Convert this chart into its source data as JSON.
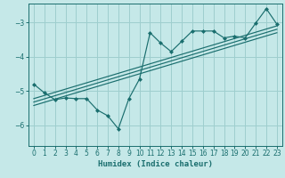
{
  "title": "",
  "xlabel": "Humidex (Indice chaleur)",
  "bg_color": "#c5e8e8",
  "grid_color": "#9ecece",
  "line_color": "#1a6e6e",
  "xlim": [
    -0.5,
    23.5
  ],
  "ylim": [
    -6.6,
    -2.45
  ],
  "yticks": [
    -6,
    -5,
    -4,
    -3
  ],
  "xticks": [
    0,
    1,
    2,
    3,
    4,
    5,
    6,
    7,
    8,
    9,
    10,
    11,
    12,
    13,
    14,
    15,
    16,
    17,
    18,
    19,
    20,
    21,
    22,
    23
  ],
  "data_x": [
    0,
    1,
    2,
    3,
    4,
    5,
    6,
    7,
    8,
    9,
    10,
    11,
    12,
    13,
    14,
    15,
    16,
    17,
    18,
    19,
    20,
    21,
    22,
    23
  ],
  "data_y": [
    -4.8,
    -5.05,
    -5.25,
    -5.2,
    -5.22,
    -5.22,
    -5.55,
    -5.72,
    -6.1,
    -5.22,
    -4.65,
    -3.3,
    -3.6,
    -3.85,
    -3.55,
    -3.25,
    -3.25,
    -3.25,
    -3.45,
    -3.4,
    -3.45,
    -3.02,
    -2.6,
    -3.05
  ],
  "trend_lines": [
    {
      "x0": 0,
      "y0": -5.22,
      "x1": 23,
      "y1": -3.1
    },
    {
      "x0": 0,
      "y0": -5.32,
      "x1": 23,
      "y1": -3.2
    },
    {
      "x0": 0,
      "y0": -5.42,
      "x1": 23,
      "y1": -3.3
    }
  ],
  "xlabel_fontsize": 6.5,
  "tick_fontsize": 5.5
}
